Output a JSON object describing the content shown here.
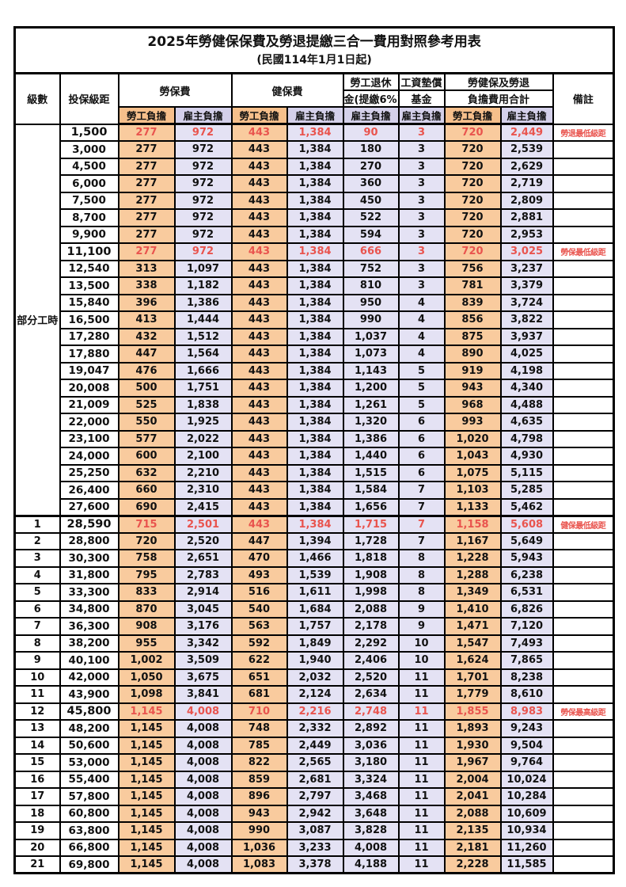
{
  "title": "2025年勞健保保費及勞退提繳三合一費用對照參考用表",
  "subtitle": "(民國114年1月1日起)",
  "header": {
    "level": "級數",
    "bracket": "投保級距",
    "labor_ins": "勞保費",
    "health_ins": "健保費",
    "pension_l1": "勞工退休",
    "pension_l2": "金(提繳6%)",
    "wage_fund_l1": "工資墊償",
    "wage_fund_l2": "基金",
    "total_l1": "勞健保及勞退",
    "total_l2": "負擔費用合計",
    "remark": "備註",
    "employee": "勞工負擔",
    "employer": "雇主負擔"
  },
  "part_time_label": "部分工時",
  "colors": {
    "employee_bg": "#f9cb9e",
    "employer_bg": "#e4e2f4",
    "employee_header_bg": "#f6bf8b",
    "employer_header_bg": "#d4d0ea",
    "highlight_red": "#e9544e",
    "border": "#000000"
  },
  "rows": [
    {
      "level": "",
      "bracket": "1,500",
      "li_emp": "277",
      "li_er": "972",
      "hi_emp": "443",
      "hi_er": "1,384",
      "pension": "90",
      "fund": "3",
      "tot_emp": "720",
      "tot_er": "2,449",
      "remark": "勞退最低級距",
      "red": true
    },
    {
      "level": "",
      "bracket": "3,000",
      "li_emp": "277",
      "li_er": "972",
      "hi_emp": "443",
      "hi_er": "1,384",
      "pension": "180",
      "fund": "3",
      "tot_emp": "720",
      "tot_er": "2,539",
      "remark": "",
      "red": false
    },
    {
      "level": "",
      "bracket": "4,500",
      "li_emp": "277",
      "li_er": "972",
      "hi_emp": "443",
      "hi_er": "1,384",
      "pension": "270",
      "fund": "3",
      "tot_emp": "720",
      "tot_er": "2,629",
      "remark": "",
      "red": false
    },
    {
      "level": "",
      "bracket": "6,000",
      "li_emp": "277",
      "li_er": "972",
      "hi_emp": "443",
      "hi_er": "1,384",
      "pension": "360",
      "fund": "3",
      "tot_emp": "720",
      "tot_er": "2,719",
      "remark": "",
      "red": false
    },
    {
      "level": "",
      "bracket": "7,500",
      "li_emp": "277",
      "li_er": "972",
      "hi_emp": "443",
      "hi_er": "1,384",
      "pension": "450",
      "fund": "3",
      "tot_emp": "720",
      "tot_er": "2,809",
      "remark": "",
      "red": false
    },
    {
      "level": "",
      "bracket": "8,700",
      "li_emp": "277",
      "li_er": "972",
      "hi_emp": "443",
      "hi_er": "1,384",
      "pension": "522",
      "fund": "3",
      "tot_emp": "720",
      "tot_er": "2,881",
      "remark": "",
      "red": false
    },
    {
      "level": "",
      "bracket": "9,900",
      "li_emp": "277",
      "li_er": "972",
      "hi_emp": "443",
      "hi_er": "1,384",
      "pension": "594",
      "fund": "3",
      "tot_emp": "720",
      "tot_er": "2,953",
      "remark": "",
      "red": false
    },
    {
      "level": "",
      "bracket": "11,100",
      "li_emp": "277",
      "li_er": "972",
      "hi_emp": "443",
      "hi_er": "1,384",
      "pension": "666",
      "fund": "3",
      "tot_emp": "720",
      "tot_er": "3,025",
      "remark": "勞保最低級距",
      "red": true
    },
    {
      "level": "",
      "bracket": "12,540",
      "li_emp": "313",
      "li_er": "1,097",
      "hi_emp": "443",
      "hi_er": "1,384",
      "pension": "752",
      "fund": "3",
      "tot_emp": "756",
      "tot_er": "3,237",
      "remark": "",
      "red": false
    },
    {
      "level": "",
      "bracket": "13,500",
      "li_emp": "338",
      "li_er": "1,182",
      "hi_emp": "443",
      "hi_er": "1,384",
      "pension": "810",
      "fund": "3",
      "tot_emp": "781",
      "tot_er": "3,379",
      "remark": "",
      "red": false
    },
    {
      "level": "",
      "bracket": "15,840",
      "li_emp": "396",
      "li_er": "1,386",
      "hi_emp": "443",
      "hi_er": "1,384",
      "pension": "950",
      "fund": "4",
      "tot_emp": "839",
      "tot_er": "3,724",
      "remark": "",
      "red": false
    },
    {
      "level": "",
      "bracket": "16,500",
      "li_emp": "413",
      "li_er": "1,444",
      "hi_emp": "443",
      "hi_er": "1,384",
      "pension": "990",
      "fund": "4",
      "tot_emp": "856",
      "tot_er": "3,822",
      "remark": "",
      "red": false
    },
    {
      "level": "",
      "bracket": "17,280",
      "li_emp": "432",
      "li_er": "1,512",
      "hi_emp": "443",
      "hi_er": "1,384",
      "pension": "1,037",
      "fund": "4",
      "tot_emp": "875",
      "tot_er": "3,937",
      "remark": "",
      "red": false
    },
    {
      "level": "",
      "bracket": "17,880",
      "li_emp": "447",
      "li_er": "1,564",
      "hi_emp": "443",
      "hi_er": "1,384",
      "pension": "1,073",
      "fund": "4",
      "tot_emp": "890",
      "tot_er": "4,025",
      "remark": "",
      "red": false
    },
    {
      "level": "",
      "bracket": "19,047",
      "li_emp": "476",
      "li_er": "1,666",
      "hi_emp": "443",
      "hi_er": "1,384",
      "pension": "1,143",
      "fund": "5",
      "tot_emp": "919",
      "tot_er": "4,198",
      "remark": "",
      "red": false
    },
    {
      "level": "",
      "bracket": "20,008",
      "li_emp": "500",
      "li_er": "1,751",
      "hi_emp": "443",
      "hi_er": "1,384",
      "pension": "1,200",
      "fund": "5",
      "tot_emp": "943",
      "tot_er": "4,340",
      "remark": "",
      "red": false
    },
    {
      "level": "",
      "bracket": "21,009",
      "li_emp": "525",
      "li_er": "1,838",
      "hi_emp": "443",
      "hi_er": "1,384",
      "pension": "1,261",
      "fund": "5",
      "tot_emp": "968",
      "tot_er": "4,488",
      "remark": "",
      "red": false
    },
    {
      "level": "",
      "bracket": "22,000",
      "li_emp": "550",
      "li_er": "1,925",
      "hi_emp": "443",
      "hi_er": "1,384",
      "pension": "1,320",
      "fund": "6",
      "tot_emp": "993",
      "tot_er": "4,635",
      "remark": "",
      "red": false
    },
    {
      "level": "",
      "bracket": "23,100",
      "li_emp": "577",
      "li_er": "2,022",
      "hi_emp": "443",
      "hi_er": "1,384",
      "pension": "1,386",
      "fund": "6",
      "tot_emp": "1,020",
      "tot_er": "4,798",
      "remark": "",
      "red": false
    },
    {
      "level": "",
      "bracket": "24,000",
      "li_emp": "600",
      "li_er": "2,100",
      "hi_emp": "443",
      "hi_er": "1,384",
      "pension": "1,440",
      "fund": "6",
      "tot_emp": "1,043",
      "tot_er": "4,930",
      "remark": "",
      "red": false
    },
    {
      "level": "",
      "bracket": "25,250",
      "li_emp": "632",
      "li_er": "2,210",
      "hi_emp": "443",
      "hi_er": "1,384",
      "pension": "1,515",
      "fund": "6",
      "tot_emp": "1,075",
      "tot_er": "5,115",
      "remark": "",
      "red": false
    },
    {
      "level": "",
      "bracket": "26,400",
      "li_emp": "660",
      "li_er": "2,310",
      "hi_emp": "443",
      "hi_er": "1,384",
      "pension": "1,584",
      "fund": "7",
      "tot_emp": "1,103",
      "tot_er": "5,285",
      "remark": "",
      "red": false
    },
    {
      "level": "",
      "bracket": "27,600",
      "li_emp": "690",
      "li_er": "2,415",
      "hi_emp": "443",
      "hi_er": "1,384",
      "pension": "1,656",
      "fund": "7",
      "tot_emp": "1,133",
      "tot_er": "5,462",
      "remark": "",
      "red": false
    },
    {
      "level": "1",
      "bracket": "28,590",
      "li_emp": "715",
      "li_er": "2,501",
      "hi_emp": "443",
      "hi_er": "1,384",
      "pension": "1,715",
      "fund": "7",
      "tot_emp": "1,158",
      "tot_er": "5,608",
      "remark": "健保最低級距",
      "red": true
    },
    {
      "level": "2",
      "bracket": "28,800",
      "li_emp": "720",
      "li_er": "2,520",
      "hi_emp": "447",
      "hi_er": "1,394",
      "pension": "1,728",
      "fund": "7",
      "tot_emp": "1,167",
      "tot_er": "5,649",
      "remark": "",
      "red": false
    },
    {
      "level": "3",
      "bracket": "30,300",
      "li_emp": "758",
      "li_er": "2,651",
      "hi_emp": "470",
      "hi_er": "1,466",
      "pension": "1,818",
      "fund": "8",
      "tot_emp": "1,228",
      "tot_er": "5,943",
      "remark": "",
      "red": false
    },
    {
      "level": "4",
      "bracket": "31,800",
      "li_emp": "795",
      "li_er": "2,783",
      "hi_emp": "493",
      "hi_er": "1,539",
      "pension": "1,908",
      "fund": "8",
      "tot_emp": "1,288",
      "tot_er": "6,238",
      "remark": "",
      "red": false
    },
    {
      "level": "5",
      "bracket": "33,300",
      "li_emp": "833",
      "li_er": "2,914",
      "hi_emp": "516",
      "hi_er": "1,611",
      "pension": "1,998",
      "fund": "8",
      "tot_emp": "1,349",
      "tot_er": "6,531",
      "remark": "",
      "red": false
    },
    {
      "level": "6",
      "bracket": "34,800",
      "li_emp": "870",
      "li_er": "3,045",
      "hi_emp": "540",
      "hi_er": "1,684",
      "pension": "2,088",
      "fund": "9",
      "tot_emp": "1,410",
      "tot_er": "6,826",
      "remark": "",
      "red": false
    },
    {
      "level": "7",
      "bracket": "36,300",
      "li_emp": "908",
      "li_er": "3,176",
      "hi_emp": "563",
      "hi_er": "1,757",
      "pension": "2,178",
      "fund": "9",
      "tot_emp": "1,471",
      "tot_er": "7,120",
      "remark": "",
      "red": false
    },
    {
      "level": "8",
      "bracket": "38,200",
      "li_emp": "955",
      "li_er": "3,342",
      "hi_emp": "592",
      "hi_er": "1,849",
      "pension": "2,292",
      "fund": "10",
      "tot_emp": "1,547",
      "tot_er": "7,493",
      "remark": "",
      "red": false
    },
    {
      "level": "9",
      "bracket": "40,100",
      "li_emp": "1,002",
      "li_er": "3,509",
      "hi_emp": "622",
      "hi_er": "1,940",
      "pension": "2,406",
      "fund": "10",
      "tot_emp": "1,624",
      "tot_er": "7,865",
      "remark": "",
      "red": false
    },
    {
      "level": "10",
      "bracket": "42,000",
      "li_emp": "1,050",
      "li_er": "3,675",
      "hi_emp": "651",
      "hi_er": "2,032",
      "pension": "2,520",
      "fund": "11",
      "tot_emp": "1,701",
      "tot_er": "8,238",
      "remark": "",
      "red": false
    },
    {
      "level": "11",
      "bracket": "43,900",
      "li_emp": "1,098",
      "li_er": "3,841",
      "hi_emp": "681",
      "hi_er": "2,124",
      "pension": "2,634",
      "fund": "11",
      "tot_emp": "1,779",
      "tot_er": "8,610",
      "remark": "",
      "red": false
    },
    {
      "level": "12",
      "bracket": "45,800",
      "li_emp": "1,145",
      "li_er": "4,008",
      "hi_emp": "710",
      "hi_er": "2,216",
      "pension": "2,748",
      "fund": "11",
      "tot_emp": "1,855",
      "tot_er": "8,983",
      "remark": "勞保最高級距",
      "red": true
    },
    {
      "level": "13",
      "bracket": "48,200",
      "li_emp": "1,145",
      "li_er": "4,008",
      "hi_emp": "748",
      "hi_er": "2,332",
      "pension": "2,892",
      "fund": "11",
      "tot_emp": "1,893",
      "tot_er": "9,243",
      "remark": "",
      "red": false
    },
    {
      "level": "14",
      "bracket": "50,600",
      "li_emp": "1,145",
      "li_er": "4,008",
      "hi_emp": "785",
      "hi_er": "2,449",
      "pension": "3,036",
      "fund": "11",
      "tot_emp": "1,930",
      "tot_er": "9,504",
      "remark": "",
      "red": false
    },
    {
      "level": "15",
      "bracket": "53,000",
      "li_emp": "1,145",
      "li_er": "4,008",
      "hi_emp": "822",
      "hi_er": "2,565",
      "pension": "3,180",
      "fund": "11",
      "tot_emp": "1,967",
      "tot_er": "9,764",
      "remark": "",
      "red": false
    },
    {
      "level": "16",
      "bracket": "55,400",
      "li_emp": "1,145",
      "li_er": "4,008",
      "hi_emp": "859",
      "hi_er": "2,681",
      "pension": "3,324",
      "fund": "11",
      "tot_emp": "2,004",
      "tot_er": "10,024",
      "remark": "",
      "red": false
    },
    {
      "level": "17",
      "bracket": "57,800",
      "li_emp": "1,145",
      "li_er": "4,008",
      "hi_emp": "896",
      "hi_er": "2,797",
      "pension": "3,468",
      "fund": "11",
      "tot_emp": "2,041",
      "tot_er": "10,284",
      "remark": "",
      "red": false
    },
    {
      "level": "18",
      "bracket": "60,800",
      "li_emp": "1,145",
      "li_er": "4,008",
      "hi_emp": "943",
      "hi_er": "2,942",
      "pension": "3,648",
      "fund": "11",
      "tot_emp": "2,088",
      "tot_er": "10,609",
      "remark": "",
      "red": false
    },
    {
      "level": "19",
      "bracket": "63,800",
      "li_emp": "1,145",
      "li_er": "4,008",
      "hi_emp": "990",
      "hi_er": "3,087",
      "pension": "3,828",
      "fund": "11",
      "tot_emp": "2,135",
      "tot_er": "10,934",
      "remark": "",
      "red": false
    },
    {
      "level": "20",
      "bracket": "66,800",
      "li_emp": "1,145",
      "li_er": "4,008",
      "hi_emp": "1,036",
      "hi_er": "3,233",
      "pension": "4,008",
      "fund": "11",
      "tot_emp": "2,181",
      "tot_er": "11,260",
      "remark": "",
      "red": false
    },
    {
      "level": "21",
      "bracket": "69,800",
      "li_emp": "1,145",
      "li_er": "4,008",
      "hi_emp": "1,083",
      "hi_er": "3,378",
      "pension": "4,188",
      "fund": "11",
      "tot_emp": "2,228",
      "tot_er": "11,585",
      "remark": "",
      "red": false
    }
  ]
}
